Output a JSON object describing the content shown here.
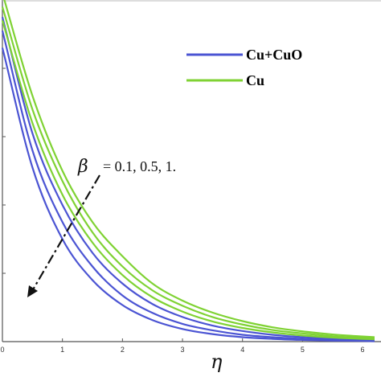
{
  "chart_data": {
    "type": "line",
    "xlabel": "η",
    "ylabel": "",
    "title": "",
    "xlim": [
      0,
      6.2
    ],
    "ylim": [
      0,
      1.0
    ],
    "x_ticks": [
      "0",
      "1",
      "2",
      "3",
      "4",
      "5",
      "6"
    ],
    "legend_position": "top-right",
    "annotation": {
      "symbol": "β",
      "text": "= 0.1, 0.5, 1.",
      "direction": "decreasing"
    },
    "legend": [
      {
        "name": "Cu+CuO",
        "color": "#4b54d3"
      },
      {
        "name": "Cu",
        "color": "#7fd233"
      }
    ],
    "series": [
      {
        "name": "Cu+CuO",
        "beta": 0.1,
        "color": "#4b54d3",
        "x": [
          0,
          0.5,
          1,
          1.5,
          2,
          2.5,
          3,
          3.5,
          4,
          4.5,
          5,
          5.5,
          6,
          6.2
        ],
        "y": [
          0.95,
          0.61,
          0.4,
          0.26,
          0.17,
          0.11,
          0.072,
          0.047,
          0.031,
          0.02,
          0.013,
          0.009,
          0.006,
          0.005
        ]
      },
      {
        "name": "Cu+CuO",
        "beta": 0.5,
        "color": "#4b54d3",
        "x": [
          0,
          0.5,
          1,
          1.5,
          2,
          2.5,
          3,
          3.5,
          4,
          4.5,
          5,
          5.5,
          6,
          6.2
        ],
        "y": [
          0.91,
          0.56,
          0.35,
          0.22,
          0.135,
          0.084,
          0.052,
          0.033,
          0.02,
          0.013,
          0.008,
          0.005,
          0.003,
          0.003
        ]
      },
      {
        "name": "Cu+CuO",
        "beta": 1.0,
        "color": "#4b54d3",
        "x": [
          0,
          0.5,
          1,
          1.5,
          2,
          2.5,
          3,
          3.5,
          4,
          4.5,
          5,
          5.5,
          6,
          6.2
        ],
        "y": [
          0.86,
          0.51,
          0.3,
          0.18,
          0.107,
          0.063,
          0.037,
          0.022,
          0.013,
          0.008,
          0.005,
          0.003,
          0.002,
          0.001
        ]
      },
      {
        "name": "Cu",
        "beta": 0.1,
        "color": "#7fd233",
        "x": [
          0,
          0.5,
          1,
          1.5,
          2,
          2.5,
          3,
          3.5,
          4,
          4.5,
          5,
          5.5,
          6,
          6.2
        ],
        "y": [
          1.02,
          0.72,
          0.5,
          0.35,
          0.25,
          0.17,
          0.12,
          0.085,
          0.06,
          0.042,
          0.03,
          0.021,
          0.015,
          0.013
        ]
      },
      {
        "name": "Cu",
        "beta": 0.5,
        "color": "#7fd233",
        "x": [
          0,
          0.5,
          1,
          1.5,
          2,
          2.5,
          3,
          3.5,
          4,
          4.5,
          5,
          5.5,
          6,
          6.2
        ],
        "y": [
          0.98,
          0.68,
          0.47,
          0.32,
          0.22,
          0.15,
          0.105,
          0.072,
          0.05,
          0.034,
          0.024,
          0.016,
          0.011,
          0.01
        ]
      },
      {
        "name": "Cu",
        "beta": 1.0,
        "color": "#7fd233",
        "x": [
          0,
          0.5,
          1,
          1.5,
          2,
          2.5,
          3,
          3.5,
          4,
          4.5,
          5,
          5.5,
          6,
          6.2
        ],
        "y": [
          0.94,
          0.64,
          0.43,
          0.29,
          0.195,
          0.13,
          0.088,
          0.059,
          0.04,
          0.027,
          0.018,
          0.012,
          0.008,
          0.007
        ]
      }
    ]
  }
}
